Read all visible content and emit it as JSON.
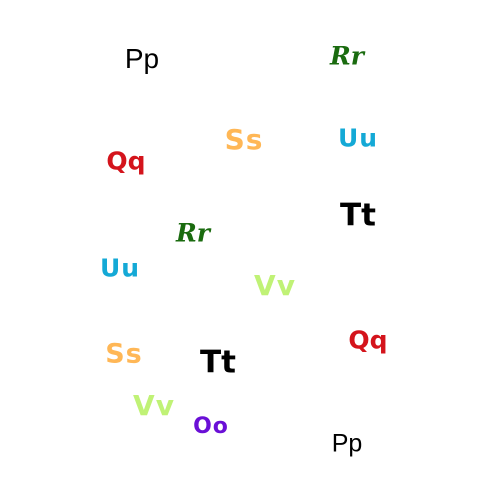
{
  "glyphs": [
    {
      "text": "Pp",
      "color": "#000000"
    },
    {
      "text": "Rr",
      "color": "#1a6b0f"
    },
    {
      "text": "Ss",
      "color": "#ffb756"
    },
    {
      "text": "Uu",
      "color": "#14a9d6"
    },
    {
      "text": "Qq",
      "color": "#d4141c"
    },
    {
      "text": "Tt",
      "color": "#000000"
    },
    {
      "text": "Rr",
      "color": "#1a6b0f"
    },
    {
      "text": "Uu",
      "color": "#14a9d6"
    },
    {
      "text": "Vv",
      "color": "#c0f276"
    },
    {
      "text": "Qq",
      "color": "#d4141c"
    },
    {
      "text": "Ss",
      "color": "#ffb756"
    },
    {
      "text": "Tt",
      "color": "#000000"
    },
    {
      "text": "Vv",
      "color": "#c0f276"
    },
    {
      "text": "Oo",
      "color": "#6a0fd6"
    },
    {
      "text": "Pp",
      "color": "#000000"
    }
  ]
}
